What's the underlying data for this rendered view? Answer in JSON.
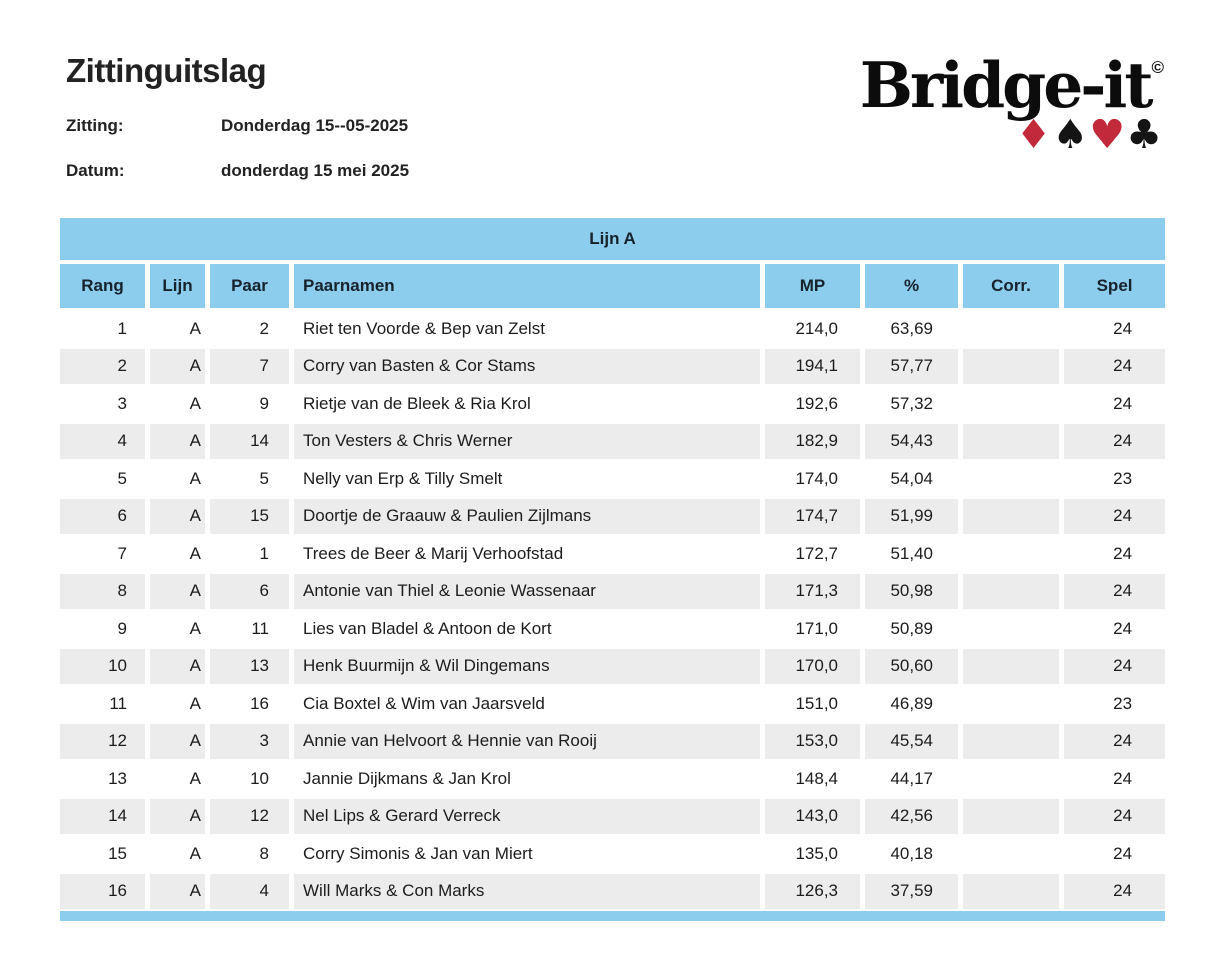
{
  "page": {
    "title": "Zittinguitslag",
    "session_label": "Zitting:",
    "session_value": "Donderdag 15--05-2025",
    "date_label": "Datum:",
    "date_value": "donderdag 15 mei 2025"
  },
  "logo": {
    "text": "Bridge-it",
    "copyright": "©",
    "suits": [
      {
        "name": "diamond",
        "glyph": "♦",
        "color": "#c2293a"
      },
      {
        "name": "spade",
        "glyph": "♠",
        "color": "#141414"
      },
      {
        "name": "heart",
        "glyph": "♥",
        "color": "#c2293a"
      },
      {
        "name": "club",
        "glyph": "♣",
        "color": "#141414"
      }
    ]
  },
  "colors": {
    "header_blue": "#8ccdee",
    "row_stripe_gray": "#ececec"
  },
  "table": {
    "group_header": "Lijn A",
    "columns": [
      "Rang",
      "Lijn",
      "Paar",
      "Paarnamen",
      "MP",
      "%",
      "Corr.",
      "Spel"
    ],
    "rows": [
      [
        "1",
        "A",
        "2",
        "Riet ten Voorde & Bep van Zelst",
        "214,0",
        "63,69",
        "",
        "24"
      ],
      [
        "2",
        "A",
        "7",
        "Corry van Basten & Cor Stams",
        "194,1",
        "57,77",
        "",
        "24"
      ],
      [
        "3",
        "A",
        "9",
        "Rietje van de Bleek & Ria Krol",
        "192,6",
        "57,32",
        "",
        "24"
      ],
      [
        "4",
        "A",
        "14",
        "Ton Vesters & Chris Werner",
        "182,9",
        "54,43",
        "",
        "24"
      ],
      [
        "5",
        "A",
        "5",
        "Nelly van Erp & Tilly Smelt",
        "174,0",
        "54,04",
        "",
        "23"
      ],
      [
        "6",
        "A",
        "15",
        "Doortje de Graauw & Paulien Zijlmans",
        "174,7",
        "51,99",
        "",
        "24"
      ],
      [
        "7",
        "A",
        "1",
        "Trees de Beer & Marij Verhoofstad",
        "172,7",
        "51,40",
        "",
        "24"
      ],
      [
        "8",
        "A",
        "6",
        "Antonie van Thiel & Leonie Wassenaar",
        "171,3",
        "50,98",
        "",
        "24"
      ],
      [
        "9",
        "A",
        "11",
        "Lies van Bladel & Antoon de Kort",
        "171,0",
        "50,89",
        "",
        "24"
      ],
      [
        "10",
        "A",
        "13",
        "Henk Buurmijn & Wil Dingemans",
        "170,0",
        "50,60",
        "",
        "24"
      ],
      [
        "11",
        "A",
        "16",
        "Cia Boxtel & Wim van Jaarsveld",
        "151,0",
        "46,89",
        "",
        "23"
      ],
      [
        "12",
        "A",
        "3",
        "Annie van Helvoort & Hennie van Rooij",
        "153,0",
        "45,54",
        "",
        "24"
      ],
      [
        "13",
        "A",
        "10",
        "Jannie Dijkmans & Jan Krol",
        "148,4",
        "44,17",
        "",
        "24"
      ],
      [
        "14",
        "A",
        "12",
        "Nel Lips & Gerard Verreck",
        "143,0",
        "42,56",
        "",
        "24"
      ],
      [
        "15",
        "A",
        "8",
        "Corry Simonis & Jan van Miert",
        "135,0",
        "40,18",
        "",
        "24"
      ],
      [
        "16",
        "A",
        "4",
        "Will Marks & Con Marks",
        "126,3",
        "37,59",
        "",
        "24"
      ]
    ]
  }
}
